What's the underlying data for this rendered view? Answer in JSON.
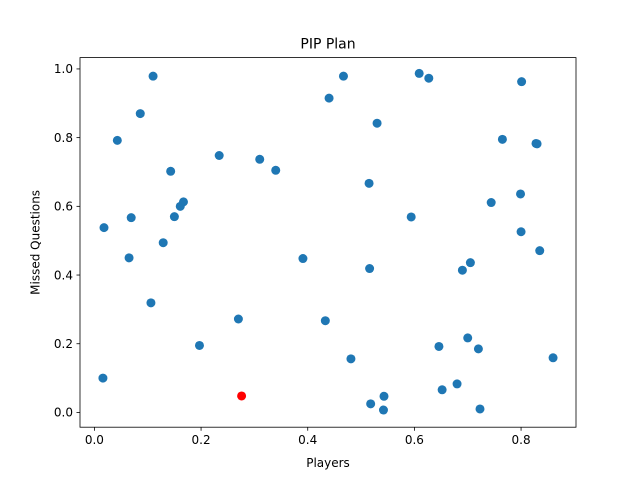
{
  "chart_data": {
    "type": "scatter",
    "title": "PIP Plan",
    "xlabel": "Players",
    "ylabel": "Missed Questions",
    "xlim": [
      -0.027,
      0.903
    ],
    "ylim": [
      -0.043,
      1.033
    ],
    "xticks": [
      0.0,
      0.2,
      0.4,
      0.6,
      0.8
    ],
    "xtick_labels": [
      "0.0",
      "0.2",
      "0.4",
      "0.6",
      "0.8"
    ],
    "yticks": [
      0.0,
      0.2,
      0.4,
      0.6,
      0.8,
      1.0
    ],
    "ytick_labels": [
      "0.0",
      "0.2",
      "0.4",
      "0.6",
      "0.8",
      "1.0"
    ],
    "grid": false,
    "series": [
      {
        "color": "#1f77b4",
        "points": [
          [
            0.016,
            0.1
          ],
          [
            0.018,
            0.538
          ],
          [
            0.043,
            0.792
          ],
          [
            0.065,
            0.45
          ],
          [
            0.069,
            0.567
          ],
          [
            0.086,
            0.87
          ],
          [
            0.106,
            0.319
          ],
          [
            0.11,
            0.979
          ],
          [
            0.129,
            0.494
          ],
          [
            0.143,
            0.702
          ],
          [
            0.15,
            0.57
          ],
          [
            0.161,
            0.6
          ],
          [
            0.167,
            0.613
          ],
          [
            0.197,
            0.195
          ],
          [
            0.234,
            0.748
          ],
          [
            0.27,
            0.272
          ],
          [
            0.31,
            0.737
          ],
          [
            0.34,
            0.705
          ],
          [
            0.391,
            0.448
          ],
          [
            0.433,
            0.267
          ],
          [
            0.44,
            0.915
          ],
          [
            0.467,
            0.979
          ],
          [
            0.481,
            0.156
          ],
          [
            0.515,
            0.667
          ],
          [
            0.516,
            0.419
          ],
          [
            0.518,
            0.025
          ],
          [
            0.53,
            0.842
          ],
          [
            0.542,
            0.007
          ],
          [
            0.543,
            0.047
          ],
          [
            0.594,
            0.569
          ],
          [
            0.609,
            0.987
          ],
          [
            0.627,
            0.973
          ],
          [
            0.646,
            0.192
          ],
          [
            0.652,
            0.066
          ],
          [
            0.68,
            0.083
          ],
          [
            0.69,
            0.414
          ],
          [
            0.7,
            0.217
          ],
          [
            0.705,
            0.436
          ],
          [
            0.72,
            0.185
          ],
          [
            0.723,
            0.01
          ],
          [
            0.744,
            0.611
          ],
          [
            0.765,
            0.795
          ],
          [
            0.799,
            0.636
          ],
          [
            0.8,
            0.526
          ],
          [
            0.801,
            0.963
          ],
          [
            0.828,
            0.783
          ],
          [
            0.83,
            0.782
          ],
          [
            0.835,
            0.471
          ],
          [
            0.86,
            0.159
          ]
        ]
      },
      {
        "color": "#ff0000",
        "points": [
          [
            0.276,
            0.048
          ]
        ]
      }
    ]
  }
}
